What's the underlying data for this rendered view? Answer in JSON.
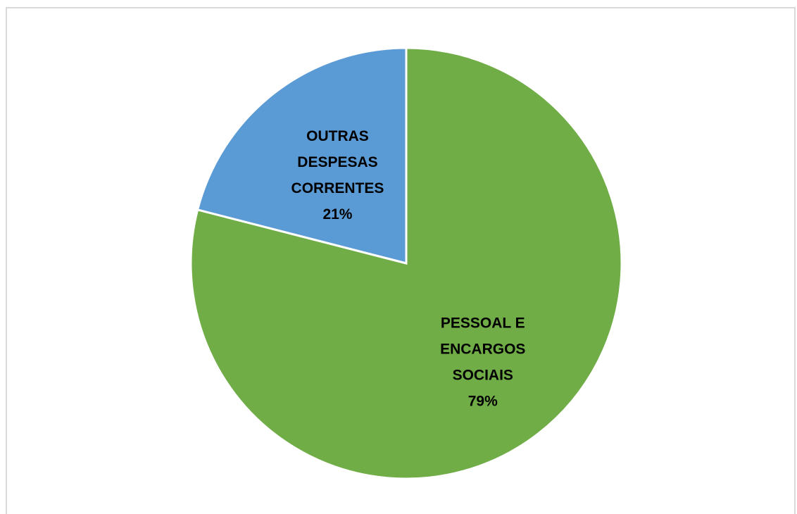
{
  "chart_data": {
    "type": "pie",
    "title": "",
    "categories": [
      "OUTRAS DESPESAS CORRENTES",
      "PESSOAL E ENCARGOS SOCIAIS"
    ],
    "values": [
      21,
      79
    ],
    "value_labels": [
      "21%",
      "79%"
    ],
    "label_lines": [
      [
        "OUTRAS",
        "DESPESAS",
        "CORRENTES",
        "21%"
      ],
      [
        "PESSOAL E",
        "ENCARGOS",
        "SOCIAIS",
        "79%"
      ]
    ],
    "colors": [
      "#5b9bd5",
      "#70ad47"
    ],
    "legend": "none",
    "start_angle": "12 o'clock",
    "direction": "counterclockwise",
    "slice_border_color": "#ffffff"
  }
}
